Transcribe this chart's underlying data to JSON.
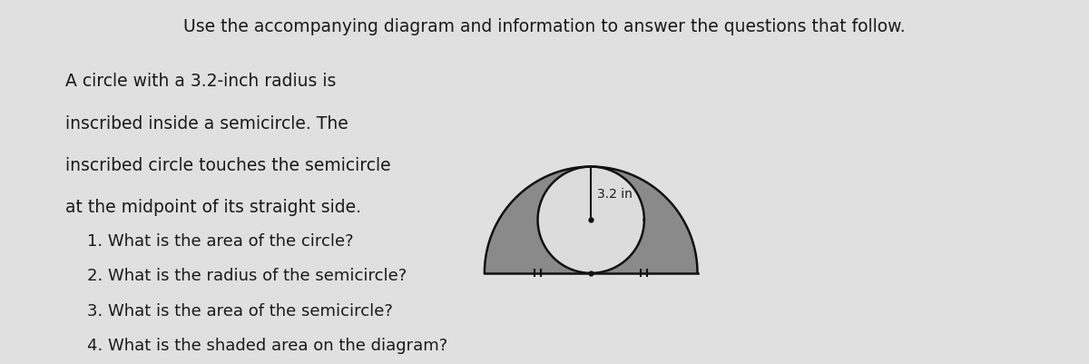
{
  "bg_color": "#e0e0e0",
  "title_text": "Use the accompanying diagram and information to answer the questions that follow.",
  "description_lines": [
    "A circle with a 3.2-inch radius is",
    "inscribed inside a semicircle. The",
    "inscribed circle touches the semicircle",
    "at the midpoint of its straight side."
  ],
  "questions": [
    "1. What is the area of the circle?",
    "2. What is the radius of the semicircle?",
    "3. What is the area of the semicircle?",
    "4. What is the shaded area on the diagram?"
  ],
  "radius_label": "3.2 in",
  "shaded_color": "#8a8a8a",
  "circle_fill": "#dcdcdc",
  "circle_edge": "#111111",
  "semicircle_edge": "#111111",
  "font_color": "#1a1a1a",
  "title_fontsize": 13.5,
  "body_fontsize": 13.5,
  "question_fontsize": 13.0
}
